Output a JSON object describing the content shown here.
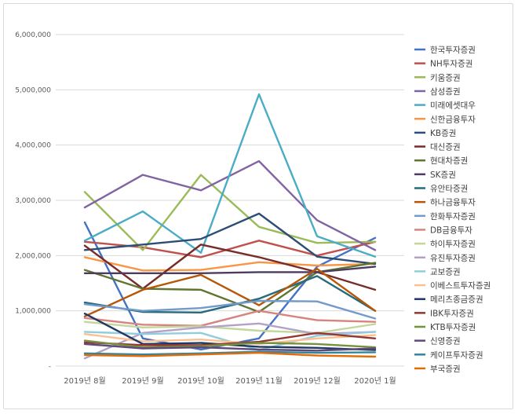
{
  "chart_data": {
    "type": "line",
    "categories": [
      "2019년 8월",
      "2019년 9월",
      "2019년 10월",
      "2019년 11월",
      "2019년 12월",
      "2020년 1월"
    ],
    "y_ticks": [
      "-",
      "1,000,000",
      "2,000,000",
      "3,000,000",
      "4,000,000",
      "5,000,000",
      "6,000,000"
    ],
    "ylim": [
      0,
      6000000
    ],
    "grid": true,
    "legend": "right",
    "series": [
      {
        "name": "한국투자증권",
        "color": "#4472c4",
        "values": [
          2600000,
          500000,
          300000,
          500000,
          1800000,
          2320000
        ]
      },
      {
        "name": "NH투자증권",
        "color": "#c0504d",
        "values": [
          2250000,
          2150000,
          1970000,
          2270000,
          2000000,
          2250000
        ]
      },
      {
        "name": "키움증권",
        "color": "#9bbb59",
        "values": [
          3150000,
          2100000,
          3460000,
          2520000,
          2230000,
          2250000
        ]
      },
      {
        "name": "삼성증권",
        "color": "#8064a2",
        "values": [
          2870000,
          3460000,
          3180000,
          3710000,
          2640000,
          2100000
        ]
      },
      {
        "name": "미래에셋대우",
        "color": "#4bacc6",
        "values": [
          2270000,
          2800000,
          2050000,
          4920000,
          2350000,
          1980000
        ]
      },
      {
        "name": "신한금융투자",
        "color": "#f79646",
        "values": [
          1970000,
          1730000,
          1740000,
          1880000,
          1820000,
          1850000
        ]
      },
      {
        "name": "KB증권",
        "color": "#2c4d75",
        "values": [
          2100000,
          2200000,
          2300000,
          2760000,
          1980000,
          1850000
        ]
      },
      {
        "name": "대신증권",
        "color": "#772c2a",
        "values": [
          2180000,
          1400000,
          2200000,
          1970000,
          1700000,
          1380000
        ]
      },
      {
        "name": "현대차증권",
        "color": "#5f7530",
        "values": [
          1740000,
          1400000,
          1380000,
          980000,
          1700000,
          1870000
        ]
      },
      {
        "name": "SK증권",
        "color": "#4d3b62",
        "values": [
          1680000,
          1680000,
          1680000,
          1700000,
          1700000,
          1800000
        ]
      },
      {
        "name": "유안타증권",
        "color": "#276a7c",
        "values": [
          1150000,
          980000,
          970000,
          1220000,
          1630000,
          1000000
        ]
      },
      {
        "name": "하나금융투자",
        "color": "#b65708",
        "values": [
          900000,
          1380000,
          1650000,
          1100000,
          1760000,
          1000000
        ]
      },
      {
        "name": "한화투자증권",
        "color": "#729aca",
        "values": [
          1120000,
          1000000,
          1050000,
          1180000,
          1170000,
          860000
        ]
      },
      {
        "name": "DB금융투자",
        "color": "#d7837f",
        "values": [
          870000,
          750000,
          730000,
          1000000,
          830000,
          800000
        ]
      },
      {
        "name": "하이투자증권",
        "color": "#c3d69b",
        "values": [
          800000,
          700000,
          720000,
          640000,
          600000,
          760000
        ]
      },
      {
        "name": "유진투자증권",
        "color": "#b3a2c7",
        "values": [
          140000,
          600000,
          700000,
          770000,
          580000,
          620000
        ]
      },
      {
        "name": "교보증권",
        "color": "#93cddd",
        "values": [
          620000,
          580000,
          600000,
          290000,
          550000,
          620000
        ]
      },
      {
        "name": "이베스트투자증권",
        "color": "#fac090",
        "values": [
          580000,
          450000,
          480000,
          400000,
          500000,
          560000
        ]
      },
      {
        "name": "메리츠종금증권",
        "color": "#1f3864",
        "values": [
          950000,
          400000,
          420000,
          350000,
          330000,
          290000
        ]
      },
      {
        "name": "IBK투자증권",
        "color": "#943634",
        "values": [
          430000,
          380000,
          380000,
          440000,
          600000,
          500000
        ]
      },
      {
        "name": "KTB투자증권",
        "color": "#76923c",
        "values": [
          460000,
          340000,
          360000,
          420000,
          400000,
          340000
        ]
      },
      {
        "name": "신영증권",
        "color": "#5f497a",
        "values": [
          400000,
          320000,
          340000,
          300000,
          280000,
          320000
        ]
      },
      {
        "name": "케이프투자증권",
        "color": "#31859c",
        "values": [
          230000,
          210000,
          230000,
          260000,
          240000,
          250000
        ]
      },
      {
        "name": "부국증권",
        "color": "#e36c09",
        "values": [
          200000,
          180000,
          210000,
          240000,
          190000,
          170000
        ]
      }
    ]
  }
}
